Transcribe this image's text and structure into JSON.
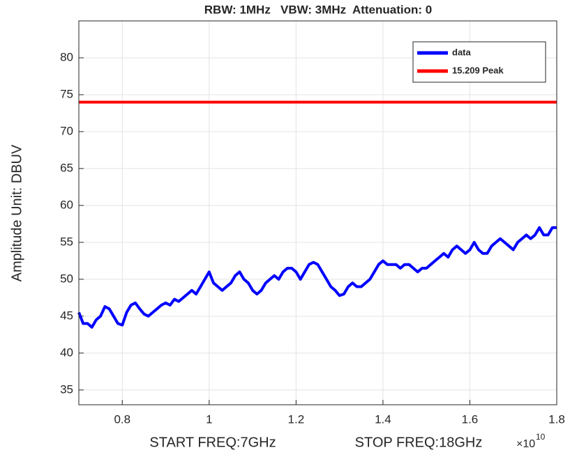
{
  "chart_data": {
    "type": "line",
    "title": "RBW: 1MHz   VBW: 3MHz  Attenuation: 0",
    "xlabel": [
      "START FREQ:7GHz",
      "STOP FREQ:18GHz"
    ],
    "x_multiplier": {
      "base": "×10",
      "exponent": "10"
    },
    "ylabel": "Amplitude Unit: DBUV",
    "xlim": [
      0.7,
      1.8
    ],
    "xticks": [
      0.8,
      1,
      1.2,
      1.4,
      1.6,
      1.8
    ],
    "ylim": [
      33,
      85
    ],
    "yticks": [
      35,
      40,
      45,
      50,
      55,
      60,
      65,
      70,
      75,
      80
    ],
    "grid": true,
    "legend": "top-right",
    "series": [
      {
        "name": "data",
        "color": "#0000ff",
        "x": [
          0.7,
          0.71,
          0.72,
          0.73,
          0.74,
          0.75,
          0.76,
          0.77,
          0.78,
          0.79,
          0.8,
          0.81,
          0.82,
          0.83,
          0.84,
          0.85,
          0.86,
          0.87,
          0.88,
          0.89,
          0.9,
          0.91,
          0.92,
          0.93,
          0.94,
          0.95,
          0.96,
          0.97,
          0.98,
          0.99,
          1.0,
          1.01,
          1.02,
          1.03,
          1.04,
          1.05,
          1.06,
          1.07,
          1.08,
          1.09,
          1.1,
          1.11,
          1.12,
          1.13,
          1.14,
          1.15,
          1.16,
          1.17,
          1.18,
          1.19,
          1.2,
          1.21,
          1.22,
          1.23,
          1.24,
          1.25,
          1.26,
          1.27,
          1.28,
          1.29,
          1.3,
          1.31,
          1.32,
          1.33,
          1.34,
          1.35,
          1.36,
          1.37,
          1.38,
          1.39,
          1.4,
          1.41,
          1.42,
          1.43,
          1.44,
          1.45,
          1.46,
          1.47,
          1.48,
          1.49,
          1.5,
          1.51,
          1.52,
          1.53,
          1.54,
          1.55,
          1.56,
          1.57,
          1.58,
          1.59,
          1.6,
          1.61,
          1.62,
          1.63,
          1.64,
          1.65,
          1.66,
          1.67,
          1.68,
          1.69,
          1.7,
          1.71,
          1.72,
          1.73,
          1.74,
          1.75,
          1.76,
          1.77,
          1.78,
          1.79,
          1.8
        ],
        "values": [
          45.5,
          44,
          44,
          43.5,
          44.5,
          45,
          46.3,
          46,
          45,
          44,
          43.8,
          45.5,
          46.5,
          46.8,
          46,
          45.3,
          45,
          45.5,
          46,
          46.5,
          46.8,
          46.5,
          47.3,
          47,
          47.5,
          48,
          48.5,
          48,
          49,
          50,
          51,
          49.5,
          49,
          48.5,
          49,
          49.5,
          50.5,
          51,
          50,
          49.5,
          48.5,
          48,
          48.5,
          49.5,
          50,
          50.5,
          50,
          51,
          51.5,
          51.5,
          51,
          50,
          51,
          52,
          52.3,
          52,
          51,
          50,
          49,
          48.5,
          47.8,
          48,
          49,
          49.5,
          49,
          49,
          49.5,
          50,
          51,
          52,
          52.5,
          52,
          52,
          52,
          51.5,
          52,
          52,
          51.5,
          51,
          51.5,
          51.5,
          52,
          52.5,
          53,
          53.5,
          53,
          54,
          54.5,
          54,
          53.5,
          54,
          55,
          54,
          53.5,
          53.5,
          54.5,
          55,
          55.5,
          55,
          54.5,
          54,
          55,
          55.5,
          56,
          55.5,
          56,
          57,
          56,
          56,
          57,
          57
        ]
      },
      {
        "name": "15.209 Peak",
        "color": "#ff0000",
        "x": [
          0.7,
          1.8
        ],
        "values": [
          74,
          74
        ]
      }
    ]
  }
}
